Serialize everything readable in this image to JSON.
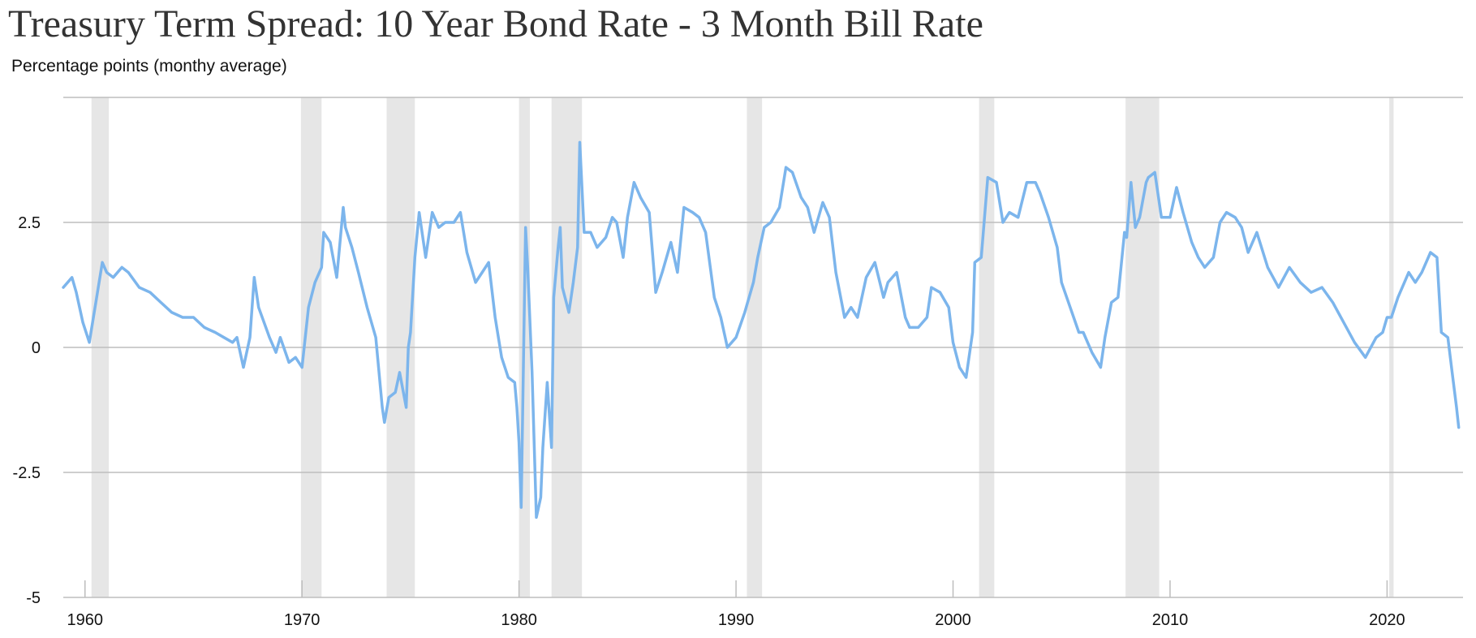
{
  "chart_data": {
    "type": "line",
    "title": "Treasury Term Spread: 10 Year Bond Rate - 3 Month Bill Rate",
    "subtitle": "Percentage points (monthy average)",
    "xlabel": "",
    "ylabel": "",
    "xlim": [
      1959.0,
      2023.5
    ],
    "ylim": [
      -5,
      5
    ],
    "y_ticks": [
      -5,
      -2.5,
      0,
      2.5
    ],
    "y_tick_labels": [
      "-5",
      "-2.5",
      "0",
      "2.5"
    ],
    "x_ticks": [
      1960,
      1970,
      1980,
      1990,
      2000,
      2010,
      2020
    ],
    "x_tick_labels": [
      "1960",
      "1970",
      "1980",
      "1990",
      "2000",
      "2010",
      "2020"
    ],
    "grid": true,
    "line_color": "#7cb5ec",
    "recession_color": "#e6e6e6",
    "recessions": [
      [
        1960.3,
        1961.1
      ],
      [
        1969.95,
        1970.9
      ],
      [
        1973.9,
        1975.2
      ],
      [
        1980.0,
        1980.5
      ],
      [
        1981.5,
        1982.9
      ],
      [
        1990.5,
        1991.2
      ],
      [
        2001.2,
        2001.9
      ],
      [
        2007.95,
        2009.5
      ],
      [
        2020.1,
        2020.3
      ]
    ],
    "series": [
      {
        "name": "",
        "x": [
          1959.0,
          1959.4,
          1959.6,
          1959.9,
          1960.2,
          1960.5,
          1960.8,
          1961.0,
          1961.3,
          1961.7,
          1962.0,
          1962.5,
          1963.0,
          1963.5,
          1964.0,
          1964.5,
          1965.0,
          1965.5,
          1966.0,
          1966.4,
          1966.8,
          1967.0,
          1967.3,
          1967.6,
          1967.8,
          1968.0,
          1968.5,
          1968.8,
          1969.0,
          1969.4,
          1969.7,
          1970.0,
          1970.3,
          1970.6,
          1970.9,
          1971.0,
          1971.3,
          1971.6,
          1971.9,
          1972.0,
          1972.3,
          1972.6,
          1973.0,
          1973.4,
          1973.7,
          1973.8,
          1974.0,
          1974.3,
          1974.5,
          1974.8,
          1974.9,
          1975.0,
          1975.2,
          1975.4,
          1975.7,
          1976.0,
          1976.3,
          1976.6,
          1977.0,
          1977.3,
          1977.6,
          1978.0,
          1978.3,
          1978.6,
          1978.9,
          1979.2,
          1979.5,
          1979.8,
          1979.9,
          1980.0,
          1980.1,
          1980.3,
          1980.4,
          1980.6,
          1980.8,
          1981.0,
          1981.1,
          1981.3,
          1981.5,
          1981.6,
          1981.8,
          1981.9,
          1982.0,
          1982.3,
          1982.5,
          1982.7,
          1982.8,
          1983.0,
          1983.3,
          1983.6,
          1984.0,
          1984.3,
          1984.5,
          1984.8,
          1985.0,
          1985.3,
          1985.6,
          1986.0,
          1986.3,
          1986.6,
          1987.0,
          1987.3,
          1987.6,
          1988.0,
          1988.3,
          1988.6,
          1989.0,
          1989.3,
          1989.6,
          1990.0,
          1990.4,
          1990.8,
          1991.0,
          1991.3,
          1991.6,
          1992.0,
          1992.3,
          1992.6,
          1993.0,
          1993.3,
          1993.6,
          1994.0,
          1994.3,
          1994.6,
          1995.0,
          1995.3,
          1995.6,
          1996.0,
          1996.4,
          1996.8,
          1997.0,
          1997.4,
          1997.8,
          1998.0,
          1998.4,
          1998.8,
          1999.0,
          1999.4,
          1999.8,
          2000.0,
          2000.3,
          2000.6,
          2000.9,
          2001.0,
          2001.3,
          2001.6,
          2002.0,
          2002.3,
          2002.6,
          2003.0,
          2003.4,
          2003.8,
          2004.0,
          2004.4,
          2004.8,
          2005.0,
          2005.4,
          2005.8,
          2006.0,
          2006.4,
          2006.8,
          2007.0,
          2007.3,
          2007.6,
          2007.9,
          2008.0,
          2008.2,
          2008.4,
          2008.6,
          2008.9,
          2009.0,
          2009.3,
          2009.6,
          2010.0,
          2010.3,
          2010.6,
          2011.0,
          2011.3,
          2011.6,
          2012.0,
          2012.3,
          2012.6,
          2013.0,
          2013.3,
          2013.6,
          2014.0,
          2014.5,
          2015.0,
          2015.5,
          2016.0,
          2016.5,
          2017.0,
          2017.5,
          2018.0,
          2018.5,
          2019.0,
          2019.5,
          2019.8,
          2020.0,
          2020.2,
          2020.5,
          2021.0,
          2021.3,
          2021.6,
          2022.0,
          2022.3,
          2022.5,
          2022.8,
          2023.0,
          2023.2,
          2023.3
        ],
        "y": [
          1.2,
          1.4,
          1.1,
          0.5,
          0.1,
          0.9,
          1.7,
          1.5,
          1.4,
          1.6,
          1.5,
          1.2,
          1.1,
          0.9,
          0.7,
          0.6,
          0.6,
          0.4,
          0.3,
          0.2,
          0.1,
          0.2,
          -0.4,
          0.2,
          1.4,
          0.8,
          0.2,
          -0.1,
          0.2,
          -0.3,
          -0.2,
          -0.4,
          0.8,
          1.3,
          1.6,
          2.3,
          2.1,
          1.4,
          2.8,
          2.4,
          2.0,
          1.5,
          0.8,
          0.2,
          -1.2,
          -1.5,
          -1.0,
          -0.9,
          -0.5,
          -1.2,
          0.0,
          0.3,
          1.8,
          2.7,
          1.8,
          2.7,
          2.4,
          2.5,
          2.5,
          2.7,
          1.9,
          1.3,
          1.5,
          1.7,
          0.6,
          -0.2,
          -0.6,
          -0.7,
          -1.2,
          -1.9,
          -3.2,
          2.4,
          1.6,
          -0.5,
          -3.4,
          -3.0,
          -2.0,
          -0.7,
          -2.0,
          1.0,
          2.0,
          2.4,
          1.2,
          0.7,
          1.3,
          2.0,
          4.1,
          2.3,
          2.3,
          2.0,
          2.2,
          2.6,
          2.5,
          1.8,
          2.6,
          3.3,
          3.0,
          2.7,
          1.1,
          1.5,
          2.1,
          1.5,
          2.8,
          2.7,
          2.6,
          2.3,
          1.0,
          0.6,
          0.0,
          0.2,
          0.7,
          1.3,
          1.8,
          2.4,
          2.5,
          2.8,
          3.6,
          3.5,
          3.0,
          2.8,
          2.3,
          2.9,
          2.6,
          1.5,
          0.6,
          0.8,
          0.6,
          1.4,
          1.7,
          1.0,
          1.3,
          1.5,
          0.6,
          0.4,
          0.4,
          0.6,
          1.2,
          1.1,
          0.8,
          0.1,
          -0.4,
          -0.6,
          0.3,
          1.7,
          1.8,
          3.4,
          3.3,
          2.5,
          2.7,
          2.6,
          3.3,
          3.3,
          3.1,
          2.6,
          2.0,
          1.3,
          0.8,
          0.3,
          0.3,
          -0.1,
          -0.4,
          0.2,
          0.9,
          1.0,
          2.3,
          2.2,
          3.3,
          2.4,
          2.6,
          3.3,
          3.4,
          3.5,
          2.6,
          2.6,
          3.2,
          2.7,
          2.1,
          1.8,
          1.6,
          1.8,
          2.5,
          2.7,
          2.6,
          2.4,
          1.9,
          2.3,
          1.6,
          1.2,
          1.6,
          1.3,
          1.1,
          1.2,
          0.9,
          0.5,
          0.1,
          -0.2,
          0.2,
          0.3,
          0.6,
          0.6,
          1.0,
          1.5,
          1.3,
          1.5,
          1.9,
          1.8,
          0.3,
          0.2,
          -0.5,
          -1.2,
          -1.6
        ]
      }
    ]
  }
}
